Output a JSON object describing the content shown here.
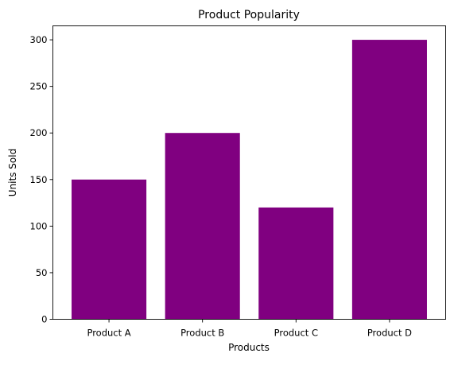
{
  "chart_data": {
    "type": "bar",
    "title": "Product Popularity",
    "xlabel": "Products",
    "ylabel": "Units Sold",
    "categories": [
      "Product A",
      "Product B",
      "Product C",
      "Product D"
    ],
    "values": [
      150,
      200,
      120,
      300
    ],
    "ylim": [
      0,
      315
    ],
    "yticks": [
      0,
      50,
      100,
      150,
      200,
      250,
      300
    ],
    "grid": false,
    "legend": "none",
    "bar_color": "#800080"
  }
}
